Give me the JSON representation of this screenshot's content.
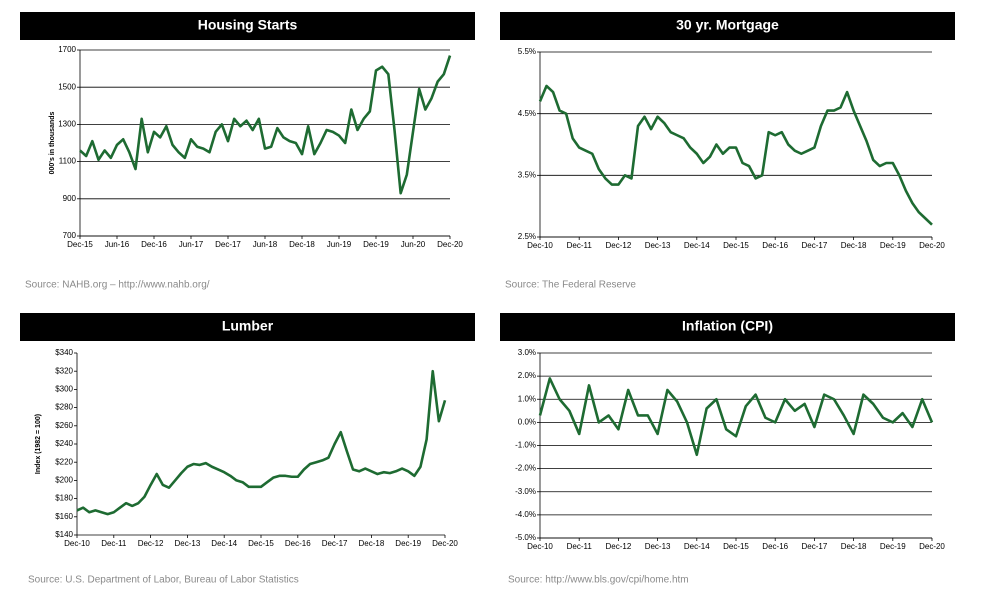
{
  "chart_data": [
    {
      "type": "line",
      "title": "Housing Starts",
      "y_label": "000's in thousands",
      "source": "Source: NAHB.org – http://www.nahb.org/",
      "color": "#1e6b32",
      "categories": [
        "Dec-15",
        null,
        null,
        null,
        null,
        null,
        "Jun-16",
        null,
        null,
        null,
        null,
        null,
        "Dec-16",
        null,
        null,
        null,
        null,
        null,
        "Jun-17",
        null,
        null,
        null,
        null,
        null,
        "Dec-17",
        null,
        null,
        null,
        null,
        null,
        "Jun-18",
        null,
        null,
        null,
        null,
        null,
        "Dec-18",
        null,
        null,
        null,
        null,
        null,
        "Jun-19",
        null,
        null,
        null,
        null,
        null,
        "Dec-19",
        null,
        null,
        null,
        null,
        null,
        "Jun-20",
        null,
        null,
        null,
        null,
        null,
        "Dec-20"
      ],
      "values": [
        1160,
        1130,
        1210,
        1110,
        1160,
        1120,
        1190,
        1220,
        1150,
        1060,
        1330,
        1150,
        1260,
        1230,
        1290,
        1190,
        1150,
        1120,
        1220,
        1180,
        1170,
        1150,
        1260,
        1300,
        1210,
        1330,
        1290,
        1320,
        1270,
        1330,
        1170,
        1180,
        1280,
        1230,
        1210,
        1200,
        1140,
        1290,
        1140,
        1200,
        1270,
        1260,
        1240,
        1200,
        1380,
        1270,
        1330,
        1370,
        1590,
        1610,
        1570,
        1270,
        930,
        1030,
        1260,
        1490,
        1380,
        1440,
        1530,
        1570,
        1670
      ],
      "ylim": [
        700,
        1700
      ],
      "yticks": [
        700,
        900,
        1100,
        1300,
        1500,
        1700
      ],
      "grid": true
    },
    {
      "type": "line",
      "title": "30 yr. Mortgage",
      "source": "Source:  The Federal Reserve",
      "color": "#1e6b32",
      "categories": [
        "Dec-10",
        null,
        null,
        null,
        null,
        null,
        "Dec-11",
        null,
        null,
        null,
        null,
        null,
        "Dec-12",
        null,
        null,
        null,
        null,
        null,
        "Dec-13",
        null,
        null,
        null,
        null,
        null,
        "Dec-14",
        null,
        null,
        null,
        null,
        null,
        "Dec-15",
        null,
        null,
        null,
        null,
        null,
        "Dec-16",
        null,
        null,
        null,
        null,
        null,
        "Dec-17",
        null,
        null,
        null,
        null,
        null,
        "Dec-18",
        null,
        null,
        null,
        null,
        null,
        "Dec-19",
        null,
        null,
        null,
        null,
        null,
        "Dec-20"
      ],
      "values": [
        4.7,
        4.95,
        4.85,
        4.55,
        4.5,
        4.1,
        3.95,
        3.9,
        3.85,
        3.6,
        3.45,
        3.35,
        3.35,
        3.5,
        3.45,
        4.3,
        4.45,
        4.25,
        4.45,
        4.35,
        4.2,
        4.15,
        4.1,
        3.95,
        3.85,
        3.7,
        3.8,
        4.0,
        3.85,
        3.95,
        3.95,
        3.7,
        3.65,
        3.45,
        3.5,
        4.2,
        4.15,
        4.2,
        4.0,
        3.9,
        3.85,
        3.9,
        3.95,
        4.3,
        4.55,
        4.55,
        4.6,
        4.85,
        4.55,
        4.3,
        4.05,
        3.75,
        3.65,
        3.7,
        3.7,
        3.5,
        3.25,
        3.05,
        2.9,
        2.8,
        2.7
      ],
      "ylim": [
        2.5,
        5.5
      ],
      "yticks": [
        {
          "value": 2.5,
          "label": "2.5%"
        },
        {
          "value": 3.5,
          "label": "3.5%"
        },
        {
          "value": 4.5,
          "label": "4.5%"
        },
        {
          "value": 5.5,
          "label": "5.5%"
        }
      ],
      "grid": true
    },
    {
      "type": "line",
      "title": "Lumber",
      "y_label": "Index (1982 = 100)",
      "source": "Source:  U.S. Department of Labor, Bureau of Labor Statistics",
      "color": "#1e6b32",
      "categories": [
        "Dec-10",
        null,
        null,
        null,
        null,
        null,
        "Dec-11",
        null,
        null,
        null,
        null,
        null,
        "Dec-12",
        null,
        null,
        null,
        null,
        null,
        "Dec-13",
        null,
        null,
        null,
        null,
        null,
        "Dec-14",
        null,
        null,
        null,
        null,
        null,
        "Dec-15",
        null,
        null,
        null,
        null,
        null,
        "Dec-16",
        null,
        null,
        null,
        null,
        null,
        "Dec-17",
        null,
        null,
        null,
        null,
        null,
        "Dec-18",
        null,
        null,
        null,
        null,
        null,
        "Dec-19",
        null,
        null,
        null,
        null,
        null,
        "Dec-20"
      ],
      "values": [
        167,
        170,
        165,
        167,
        165,
        163,
        165,
        170,
        175,
        172,
        175,
        182,
        195,
        207,
        195,
        192,
        200,
        208,
        215,
        218,
        217,
        219,
        215,
        212,
        209,
        205,
        200,
        198,
        193,
        193,
        193,
        198,
        203,
        205,
        205,
        204,
        204,
        212,
        218,
        220,
        222,
        225,
        240,
        253,
        232,
        212,
        210,
        213,
        210,
        207,
        209,
        208,
        210,
        213,
        210,
        205,
        215,
        245,
        320,
        265,
        288
      ],
      "ylim": [
        140,
        340
      ],
      "yticks": [
        {
          "value": 140,
          "label": "$140"
        },
        {
          "value": 160,
          "label": "$160"
        },
        {
          "value": 180,
          "label": "$180"
        },
        {
          "value": 200,
          "label": "$200"
        },
        {
          "value": 220,
          "label": "$220"
        },
        {
          "value": 240,
          "label": "$240"
        },
        {
          "value": 260,
          "label": "$260"
        },
        {
          "value": 280,
          "label": "$280"
        },
        {
          "value": 300,
          "label": "$300"
        },
        {
          "value": 320,
          "label": "$320"
        },
        {
          "value": 340,
          "label": "$340"
        }
      ],
      "grid": false
    },
    {
      "type": "line",
      "title": "Inflation (CPI)",
      "source": "Source: http://www.bls.gov/cpi/home.htm",
      "color": "#1e6b32",
      "categories": [
        "Dec-10",
        null,
        null,
        null,
        "Dec-11",
        null,
        null,
        null,
        "Dec-12",
        null,
        null,
        null,
        "Dec-13",
        null,
        null,
        null,
        "Dec-14",
        null,
        null,
        null,
        "Dec-15",
        null,
        null,
        null,
        "Dec-16",
        null,
        null,
        null,
        "Dec-17",
        null,
        null,
        null,
        "Dec-18",
        null,
        null,
        null,
        "Dec-19",
        null,
        null,
        null,
        "Dec-20"
      ],
      "values": [
        0.3,
        1.9,
        1.0,
        0.5,
        -0.5,
        1.6,
        0.0,
        0.3,
        -0.3,
        1.4,
        0.3,
        0.3,
        -0.5,
        1.4,
        0.9,
        0.0,
        -1.4,
        0.6,
        1.0,
        -0.3,
        -0.6,
        0.7,
        1.2,
        0.2,
        0.0,
        1.0,
        0.5,
        0.8,
        -0.2,
        1.2,
        1.0,
        0.3,
        -0.5,
        1.2,
        0.8,
        0.2,
        0.0,
        0.4,
        -0.2,
        1.0,
        0.0
      ],
      "ylim": [
        -5,
        3
      ],
      "yticks": [
        {
          "value": -5,
          "label": "-5.0%"
        },
        {
          "value": -4,
          "label": "-4.0%"
        },
        {
          "value": -3,
          "label": "-3.0%"
        },
        {
          "value": -2,
          "label": "-2.0%"
        },
        {
          "value": -1,
          "label": "-1.0%"
        },
        {
          "value": 0,
          "label": "0.0%"
        },
        {
          "value": 1,
          "label": "1.0%"
        },
        {
          "value": 2,
          "label": "2.0%"
        },
        {
          "value": 3,
          "label": "3.0%"
        }
      ],
      "grid": true
    }
  ]
}
